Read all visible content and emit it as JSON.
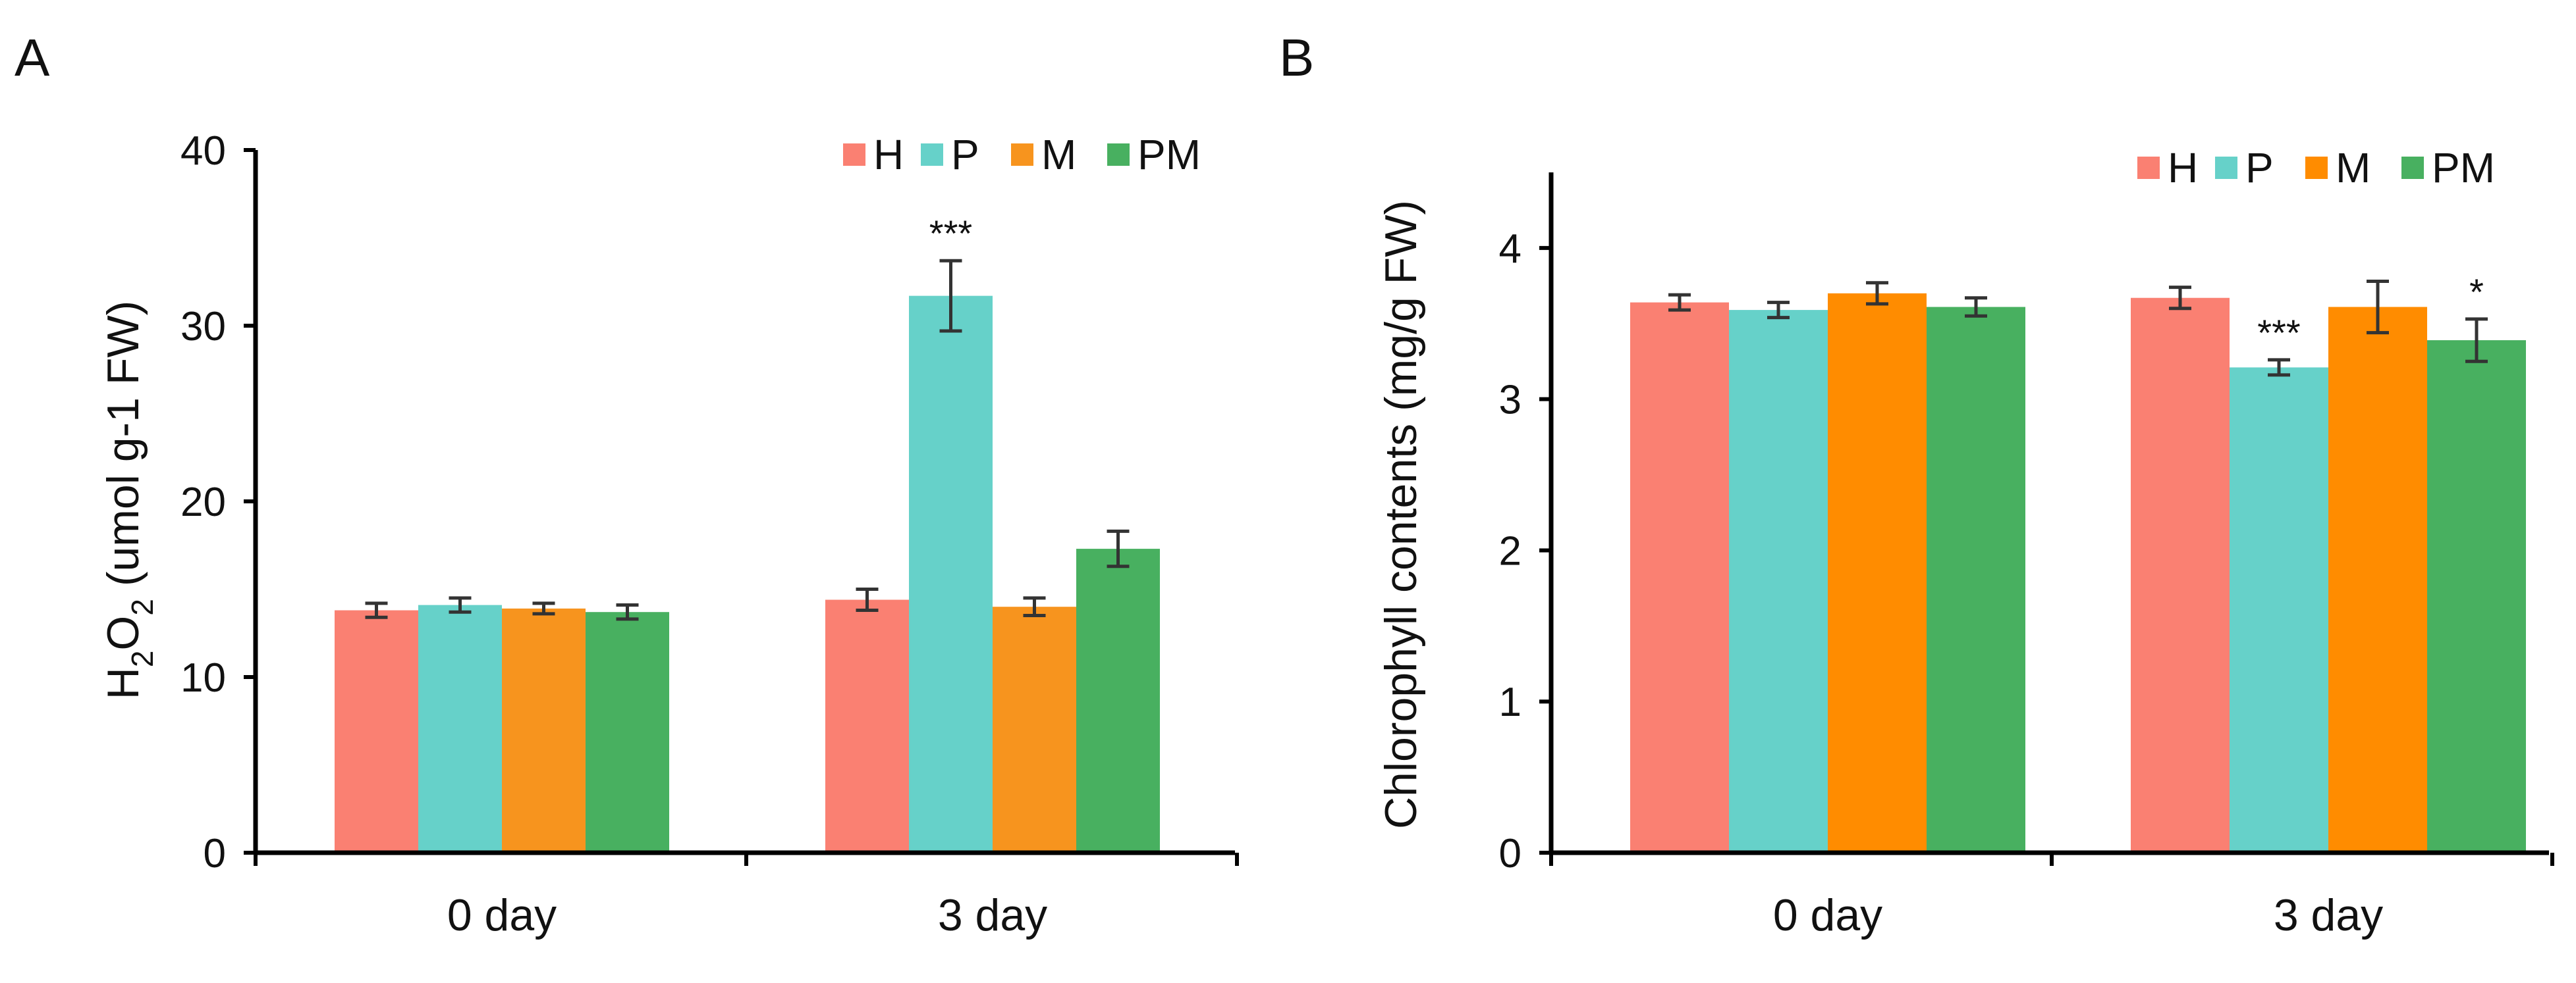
{
  "chart_data": [
    {
      "type": "bar",
      "panel": "A",
      "title": "",
      "xlabel": "",
      "ylabel": {
        "main": "H",
        "sub1": "2",
        "mid": "O",
        "sub2": "2",
        "rest": " (umol g-1 FW)"
      },
      "ylim": [
        0,
        40
      ],
      "yticks": [
        "0",
        "10",
        "20",
        "30",
        "40"
      ],
      "yticks_values": [
        0,
        10,
        20,
        30,
        40
      ],
      "categories": [
        "0 day",
        "3 day"
      ],
      "legend_position": "top-right",
      "series": [
        {
          "name": "H",
          "color": "#FA8072",
          "values": [
            13.8,
            14.4
          ],
          "errors": [
            0.4,
            0.6
          ],
          "sig": [
            "",
            ""
          ]
        },
        {
          "name": "P",
          "color": "#66D1C9",
          "values": [
            14.1,
            31.7
          ],
          "errors": [
            0.4,
            2.0
          ],
          "sig": [
            "",
            "***"
          ]
        },
        {
          "name": "M",
          "color": "#F7941E",
          "values": [
            13.9,
            14.0
          ],
          "errors": [
            0.3,
            0.5
          ],
          "sig": [
            "",
            ""
          ]
        },
        {
          "name": "PM",
          "color": "#48B060",
          "values": [
            13.7,
            17.3
          ],
          "errors": [
            0.4,
            1.0
          ],
          "sig": [
            "",
            ""
          ]
        }
      ]
    },
    {
      "type": "bar",
      "panel": "B",
      "title": "",
      "xlabel": "",
      "ylabel": "Chlorophyll contents (mg/g FW)",
      "ylim": [
        0,
        4.5
      ],
      "yticks": [
        "0",
        "1",
        "2",
        "3",
        "4"
      ],
      "yticks_values": [
        0,
        1,
        2,
        3,
        4
      ],
      "categories": [
        "0 day",
        "3 day"
      ],
      "legend_position": "top-right",
      "series": [
        {
          "name": "H",
          "color": "#FA8072",
          "values": [
            3.64,
            3.67
          ],
          "errors": [
            0.05,
            0.07
          ],
          "sig": [
            "",
            ""
          ]
        },
        {
          "name": "P",
          "color": "#66D1C9",
          "values": [
            3.59,
            3.21
          ],
          "errors": [
            0.05,
            0.05
          ],
          "sig": [
            "",
            "***"
          ]
        },
        {
          "name": "M",
          "color": "#FF8C00",
          "values": [
            3.7,
            3.61
          ],
          "errors": [
            0.07,
            0.17
          ],
          "sig": [
            "",
            ""
          ]
        },
        {
          "name": "PM",
          "color": "#48B060",
          "values": [
            3.61,
            3.39
          ],
          "errors": [
            0.06,
            0.14
          ],
          "sig": [
            "",
            "*"
          ]
        }
      ]
    }
  ]
}
